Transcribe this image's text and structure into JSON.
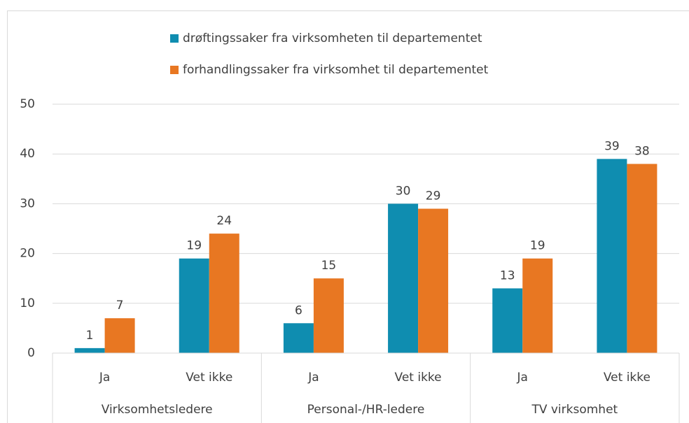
{
  "chart_data": {
    "type": "bar",
    "groups": [
      {
        "name": "Virksomhetsledere",
        "categories": [
          "Ja",
          "Vet ikke"
        ]
      },
      {
        "name": "Personal-/HR-ledere",
        "categories": [
          "Ja",
          "Vet ikke"
        ]
      },
      {
        "name": "TV virksomhet",
        "categories": [
          "Ja",
          "Vet ikke"
        ]
      }
    ],
    "series": [
      {
        "name": "drøftingssaker fra virksomheten til departementet",
        "color": "#0f8db0",
        "values": [
          1,
          19,
          6,
          30,
          13,
          39
        ]
      },
      {
        "name": "forhandlingssaker fra virksomhet til departementet",
        "color": "#e87722",
        "values": [
          7,
          24,
          15,
          29,
          19,
          38
        ]
      }
    ],
    "ylim": [
      0,
      50
    ],
    "yticks": [
      0,
      10,
      20,
      30,
      40,
      50
    ],
    "grid": true,
    "legend": "top"
  }
}
